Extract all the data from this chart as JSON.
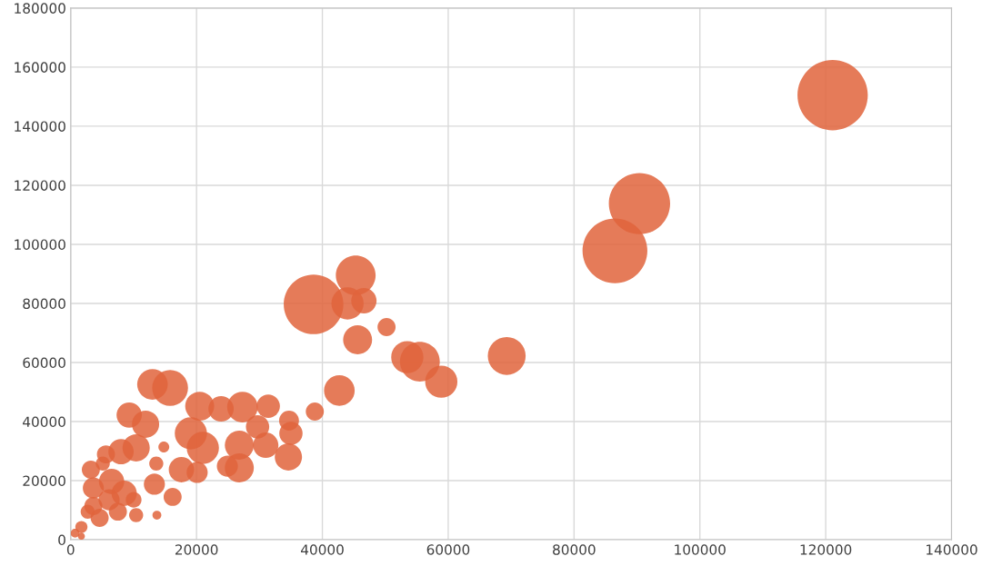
{
  "chart_data": {
    "type": "bubble",
    "color": "#e0643c",
    "x": [
      121100,
      90400,
      86500,
      38600,
      45300,
      44000,
      46600,
      50200,
      45600,
      53500,
      55500,
      58900,
      69300,
      42700,
      38800,
      13000,
      15800,
      9300,
      11900,
      20500,
      23900,
      27300,
      31400,
      19100,
      21000,
      29700,
      34700,
      35000,
      34600,
      31000,
      26800,
      26800,
      24900,
      8000,
      10400,
      5600,
      14800,
      13600,
      17600,
      20100,
      13300,
      16200,
      13700,
      3200,
      3600,
      6500,
      8500,
      6100,
      10400,
      2700,
      4600,
      1700,
      700,
      7500,
      3600,
      5100,
      10000,
      1700
    ],
    "values": [
      150500,
      113800,
      97800,
      79700,
      89500,
      80000,
      80900,
      72000,
      67700,
      61800,
      60300,
      53500,
      62200,
      50500,
      43400,
      52600,
      51400,
      42200,
      39100,
      45200,
      44300,
      44900,
      45200,
      36000,
      31100,
      38200,
      40300,
      36000,
      28000,
      32000,
      32000,
      24300,
      24900,
      29800,
      31100,
      28900,
      31400,
      25800,
      23700,
      22800,
      18800,
      14500,
      8300,
      23700,
      17500,
      19700,
      15700,
      13500,
      8300,
      9500,
      7400,
      4300,
      2200,
      9500,
      11400,
      25800,
      13500,
      1200
    ],
    "sizes": [
      1,
      0.76,
      0.85,
      0.72,
      0.32,
      0.21,
      0.13,
      0.066,
      0.17,
      0.21,
      0.32,
      0.21,
      0.29,
      0.19,
      0.066,
      0.19,
      0.26,
      0.13,
      0.15,
      0.17,
      0.13,
      0.19,
      0.11,
      0.21,
      0.21,
      0.11,
      0.08,
      0.11,
      0.15,
      0.13,
      0.17,
      0.17,
      0.09,
      0.13,
      0.15,
      0.066,
      0.024,
      0.04,
      0.13,
      0.09,
      0.09,
      0.066,
      0.016,
      0.066,
      0.09,
      0.13,
      0.13,
      0.09,
      0.04,
      0.04,
      0.066,
      0.03,
      0.016,
      0.066,
      0.066,
      0.04,
      0.05,
      0.01
    ],
    "xlim": [
      0,
      140000
    ],
    "ylim": [
      0,
      180000
    ],
    "xticks": [
      0,
      20000,
      40000,
      60000,
      80000,
      100000,
      120000,
      140000
    ],
    "yticks": [
      0,
      20000,
      40000,
      60000,
      80000,
      100000,
      120000,
      140000,
      160000,
      180000
    ],
    "grid": true,
    "relative": false
  }
}
